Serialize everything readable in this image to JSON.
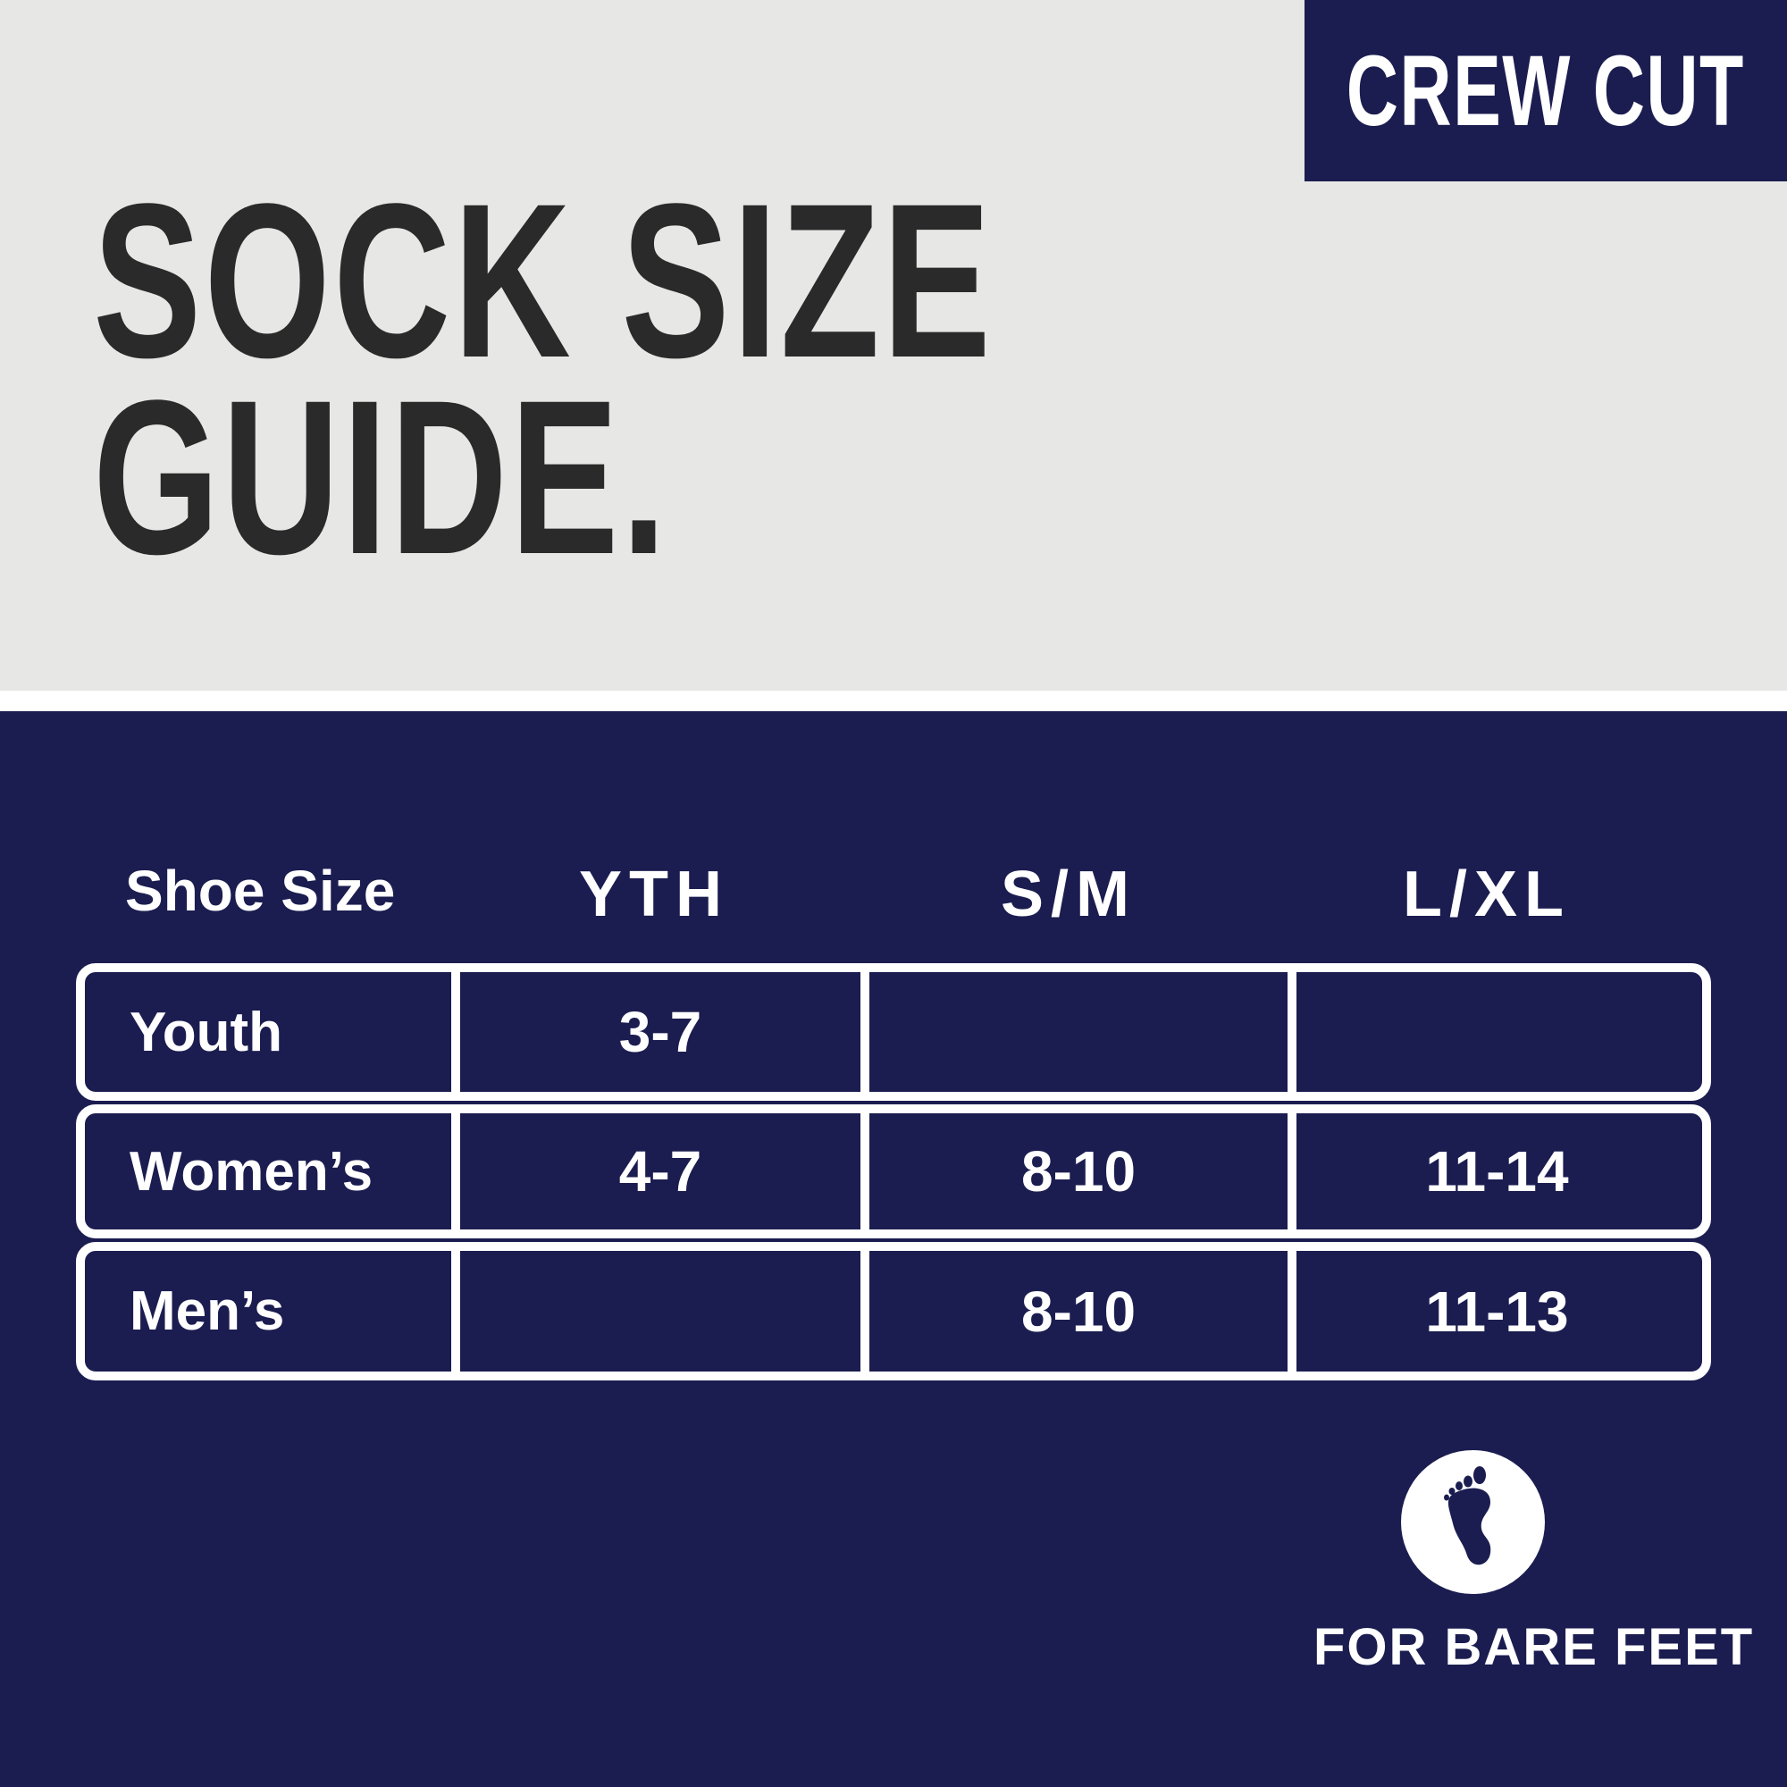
{
  "badge": "CREW CUT",
  "title": {
    "line1": "SOCK SIZE",
    "line2": "GUIDE."
  },
  "table": {
    "headers": [
      "Shoe Size",
      "YTH",
      "S/M",
      "L/XL"
    ],
    "rows": [
      {
        "label": "Youth",
        "values": [
          "3-7",
          "",
          ""
        ]
      },
      {
        "label": "Women’s",
        "values": [
          "4-7",
          "8-10",
          "11-14"
        ]
      },
      {
        "label": "Men’s",
        "values": [
          "",
          "8-10",
          "11-13"
        ]
      }
    ]
  },
  "footer": {
    "icon": "bare-foot-icon",
    "label": "FOR BARE FEET"
  },
  "colors": {
    "navy": "#1b1d50",
    "gray": "#e7e7e5",
    "title": "#2a2a2a"
  }
}
